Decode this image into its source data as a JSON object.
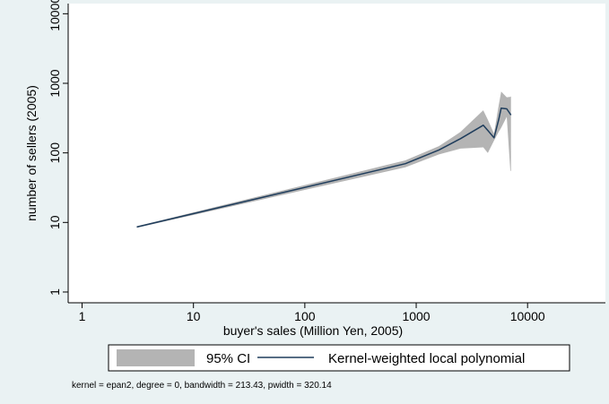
{
  "chart_data": {
    "type": "line",
    "xlabel": "buyer's sales (Million Yen, 2005)",
    "ylabel": "number of sellers (2005)",
    "x_scale": "log",
    "y_scale": "log",
    "xlim": [
      0.75,
      50000
    ],
    "ylim": [
      0.7,
      14000
    ],
    "x_ticks": [
      1,
      10,
      100,
      1000,
      10000
    ],
    "x_tick_labels": [
      "1",
      "10",
      "100",
      "1000",
      "10000"
    ],
    "y_ticks": [
      1,
      10,
      100,
      1000,
      10000
    ],
    "y_tick_labels": [
      "1",
      "10",
      "100",
      "1000",
      "10000"
    ],
    "grid": false,
    "legend_position": "bottom",
    "series": [
      {
        "name": "95% CI",
        "type": "area",
        "color": "#b4b4b4",
        "x": [
          3.1,
          800,
          1600,
          2500,
          4000,
          4400,
          5000,
          5500,
          5800,
          6500,
          7000,
          7100
        ],
        "lower": [
          8.4,
          62,
          95,
          115,
          120,
          100,
          150,
          200,
          230,
          330,
          55,
          55
        ],
        "upper": [
          8.8,
          78,
          125,
          200,
          410,
          300,
          190,
          480,
          760,
          630,
          640,
          650
        ]
      },
      {
        "name": "Kernel-weighted local polynomial",
        "type": "line",
        "color": "#1f3d5c",
        "x": [
          3.1,
          800,
          1600,
          2500,
          4000,
          4400,
          5000,
          5500,
          5800,
          6500,
          7100
        ],
        "y": [
          8.6,
          70,
          110,
          160,
          250,
          210,
          165,
          300,
          440,
          430,
          350
        ]
      }
    ]
  },
  "note": "kernel = epan2, degree = 0, bandwidth = 213.43, pwidth = 320.14",
  "colors": {
    "background": "#eaf2f3",
    "plot_area": "#ffffff",
    "ci_fill": "#b4b4b4",
    "line": "#1f3d5c"
  }
}
